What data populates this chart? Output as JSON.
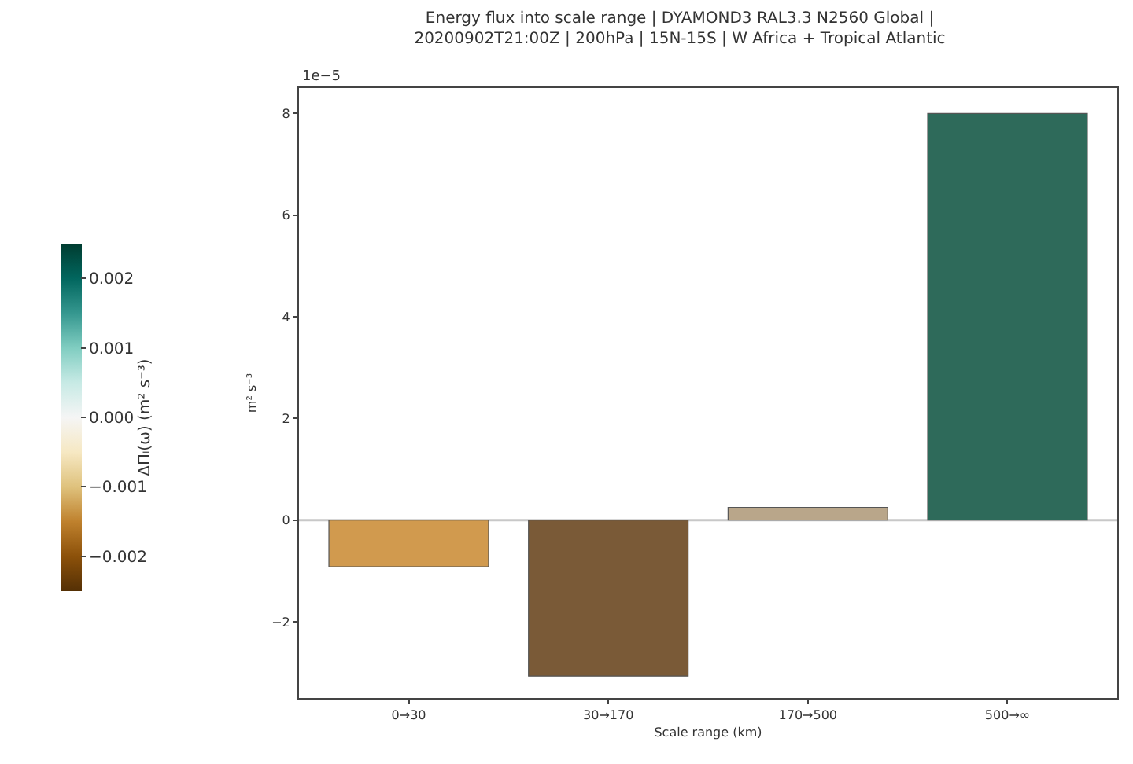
{
  "chart_data": {
    "type": "bar",
    "title": "Energy flux into scale range | DYAMOND3 RAL3.3 N2560 Global |\n20200902T21:00Z | 200hPa | 15N-15S | W Africa + Tropical Atlantic",
    "categories": [
      "0→30",
      "30→170",
      "170→500",
      "500→∞"
    ],
    "values": [
      -0.92,
      -3.07,
      0.25,
      8.0
    ],
    "colors": [
      "#d19a4e",
      "#7a5a37",
      "#b9a68a",
      "#2e6a5a"
    ],
    "xlabel": "Scale range (km)",
    "ylabel": "m² s⁻³",
    "ylim": [
      -3.5,
      8.5
    ],
    "yticks": [
      -2,
      0,
      2,
      4,
      6,
      8
    ],
    "ref_lines": [
      {
        "axis": "y",
        "value": 0,
        "color": "#c8c8c8"
      }
    ],
    "clabel": "ΔΠₗ(ω) (m² s⁻³)",
    "clim": [
      -0.0025,
      0.0025
    ],
    "cticks": [
      -0.002,
      -0.001,
      {
        "value": 0,
        "label": "0.000"
      },
      0.001,
      0.002
    ],
    "annotations": [
      "1e−5"
    ],
    "grid": false
  }
}
